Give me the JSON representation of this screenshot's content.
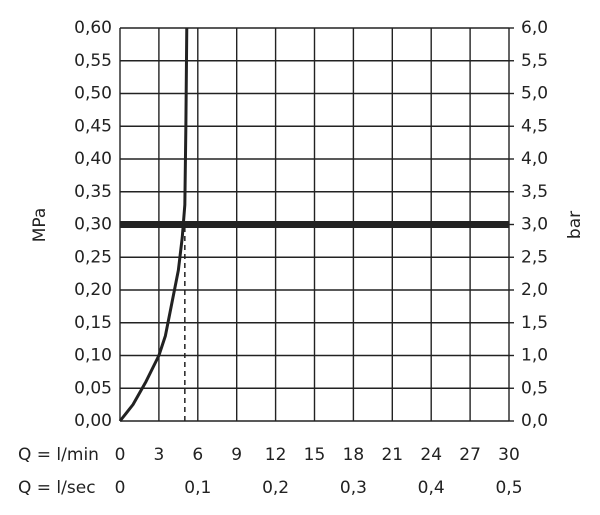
{
  "chart_data": {
    "type": "line",
    "x": [
      0,
      1,
      2,
      3,
      3.5,
      4,
      4.5,
      4.8,
      5,
      5.08,
      5.15
    ],
    "series": [
      {
        "color": "#222222",
        "values": [
          0,
          0.025,
          0.06,
          0.1,
          0.13,
          0.18,
          0.23,
          0.28,
          0.33,
          0.45,
          0.6
        ]
      }
    ],
    "xlabel": "Q = l/min",
    "x2label": "Q = l/sec",
    "ylabel": "MPa",
    "y2label": "bar",
    "xlim": [
      0,
      30
    ],
    "xticks": [
      0,
      3,
      6,
      9,
      12,
      15,
      18,
      21,
      24,
      27,
      30
    ],
    "x2lim": [
      0,
      0.5
    ],
    "x2ticks": [
      0,
      {
        "value": 0.1,
        "label": "0,1"
      },
      {
        "value": 0.2,
        "label": "0,2"
      },
      {
        "value": 0.3,
        "label": "0,3"
      },
      {
        "value": 0.4,
        "label": "0,4"
      },
      {
        "value": 0.5,
        "label": "0,5"
      }
    ],
    "ylim": [
      0,
      0.6
    ],
    "yticks": [
      {
        "value": 0,
        "label": "0,00"
      },
      {
        "value": 0.05,
        "label": "0,05"
      },
      {
        "value": 0.1,
        "label": "0,10"
      },
      {
        "value": 0.15,
        "label": "0,15"
      },
      {
        "value": 0.2,
        "label": "0,20"
      },
      {
        "value": 0.25,
        "label": "0,25"
      },
      {
        "value": 0.3,
        "label": "0,30"
      },
      {
        "value": 0.35,
        "label": "0,35"
      },
      {
        "value": 0.4,
        "label": "0,40"
      },
      {
        "value": 0.45,
        "label": "0,45"
      },
      {
        "value": 0.5,
        "label": "0,50"
      },
      {
        "value": 0.55,
        "label": "0,55"
      },
      {
        "value": 0.6,
        "label": "0,60"
      }
    ],
    "y2lim": [
      0,
      6
    ],
    "y2ticks": [
      {
        "value": 0,
        "label": "0,0"
      },
      {
        "value": 0.5,
        "label": "0,5"
      },
      {
        "value": 1,
        "label": "1,0"
      },
      {
        "value": 1.5,
        "label": "1,5"
      },
      {
        "value": 2,
        "label": "2,0"
      },
      {
        "value": 2.5,
        "label": "2,5"
      },
      {
        "value": 3,
        "label": "3,0"
      },
      {
        "value": 3.5,
        "label": "3,5"
      },
      {
        "value": 4,
        "label": "4,0"
      },
      {
        "value": 4.5,
        "label": "4,5"
      },
      {
        "value": 5,
        "label": "5,0"
      },
      {
        "value": 5.5,
        "label": "5,5"
      },
      {
        "value": 6,
        "label": "6,0"
      }
    ],
    "hline": 0.3,
    "operating_point": {
      "x": 5,
      "y": 0.3
    },
    "grid": true
  }
}
